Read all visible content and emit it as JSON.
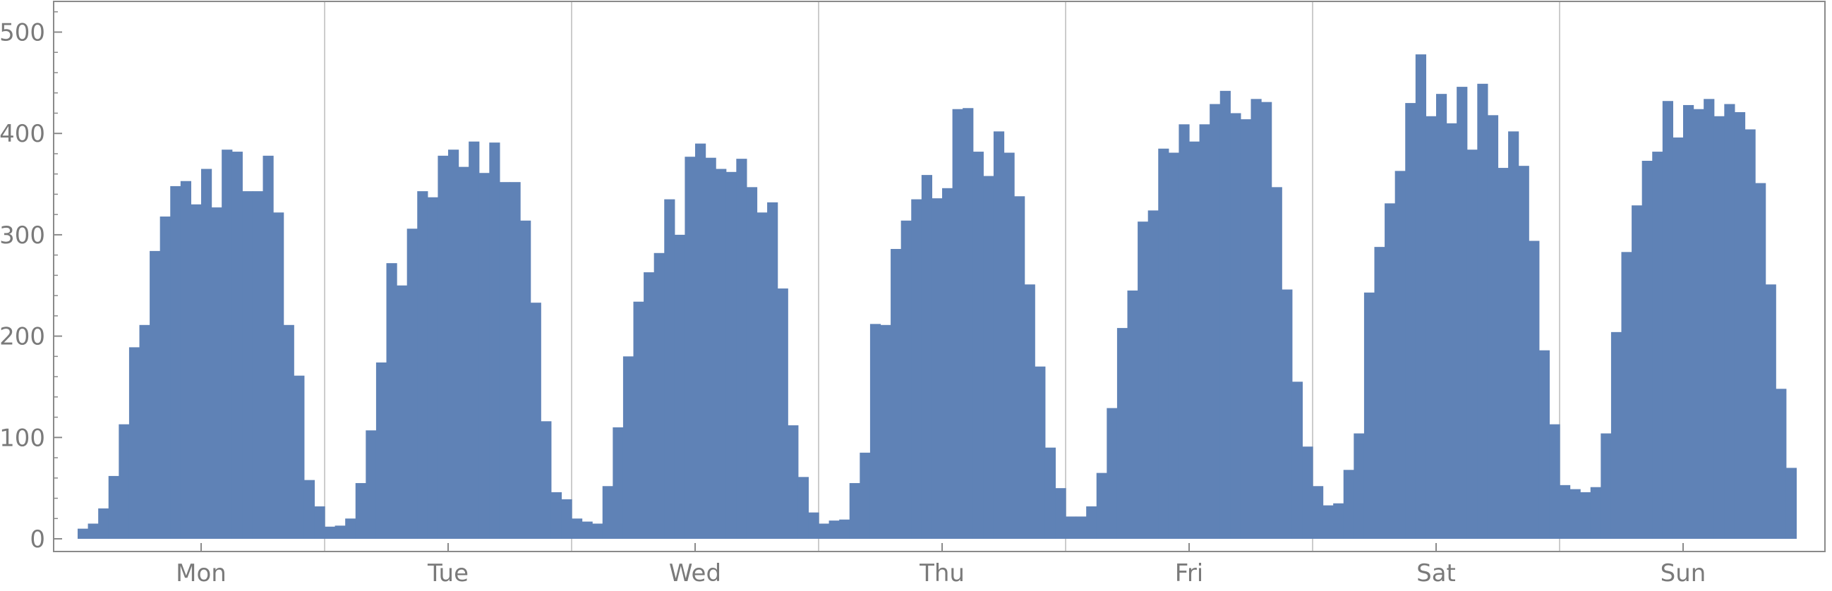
{
  "colors": {
    "bar": "#5f82b6",
    "axis": "#8a8a8a",
    "divider": "#cccccc",
    "tick_text": "#7a7a7a"
  },
  "chart_data": {
    "type": "bar",
    "title": "",
    "xlabel": "",
    "ylabel": "",
    "ylim": [
      0,
      530
    ],
    "yticks": [
      0,
      100,
      200,
      300,
      400,
      500
    ],
    "grid": false,
    "legend": "none",
    "days": [
      "Mon",
      "Tue",
      "Wed",
      "Thu",
      "Fri",
      "Sat",
      "Sun"
    ],
    "bins_per_day": 24,
    "values": [
      10,
      15,
      30,
      62,
      113,
      189,
      211,
      284,
      318,
      348,
      353,
      330,
      365,
      327,
      384,
      382,
      343,
      343,
      378,
      322,
      211,
      161,
      58,
      32,
      12,
      13,
      20,
      55,
      107,
      174,
      272,
      250,
      306,
      343,
      337,
      378,
      384,
      367,
      392,
      361,
      391,
      352,
      352,
      314,
      233,
      116,
      46,
      39,
      20,
      17,
      15,
      52,
      110,
      180,
      234,
      263,
      282,
      335,
      300,
      377,
      390,
      376,
      365,
      362,
      375,
      347,
      322,
      332,
      247,
      112,
      61,
      26,
      15,
      18,
      19,
      55,
      85,
      212,
      211,
      286,
      314,
      335,
      359,
      336,
      346,
      424,
      425,
      382,
      358,
      402,
      381,
      338,
      251,
      170,
      90,
      50,
      22,
      22,
      32,
      65,
      129,
      208,
      245,
      313,
      324,
      385,
      381,
      409,
      392,
      409,
      429,
      442,
      420,
      414,
      434,
      431,
      347,
      246,
      155,
      91,
      52,
      33,
      35,
      68,
      104,
      243,
      288,
      331,
      363,
      430,
      478,
      417,
      439,
      410,
      446,
      384,
      449,
      418,
      366,
      402,
      368,
      294,
      186,
      113,
      53,
      49,
      46,
      51,
      104,
      204,
      283,
      329,
      373,
      382,
      432,
      396,
      428,
      424,
      434,
      417,
      429,
      421,
      404,
      351,
      251,
      148,
      70
    ]
  }
}
